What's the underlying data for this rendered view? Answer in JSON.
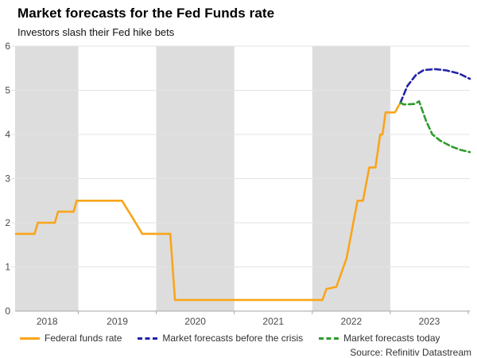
{
  "header": {
    "title": "Market forecasts for the Fed Funds rate",
    "subtitle": "Investors slash their Fed hike bets"
  },
  "source": "Source: Refinitiv Datastream",
  "chart_data": {
    "type": "line",
    "title": "Market forecasts for the Fed Funds rate",
    "subtitle": "Investors slash their Fed hike bets",
    "xlabel": "",
    "ylabel": "",
    "xlim": [
      2018.19,
      2024.02
    ],
    "ylim": [
      0,
      6
    ],
    "y_ticks": [
      0,
      1,
      2,
      3,
      4,
      5,
      6
    ],
    "x_boundaries": [
      2019,
      2020,
      2021,
      2022,
      2023,
      2024
    ],
    "x_labels": [
      {
        "label": "2018",
        "x": 2018.6
      },
      {
        "label": "2019",
        "x": 2019.5
      },
      {
        "label": "2020",
        "x": 2020.5
      },
      {
        "label": "2021",
        "x": 2021.5
      },
      {
        "label": "2022",
        "x": 2022.5
      },
      {
        "label": "2023",
        "x": 2023.5
      }
    ],
    "shaded_year_bands": [
      [
        2018.19,
        2019
      ],
      [
        2020,
        2021
      ],
      [
        2022,
        2023
      ]
    ],
    "grid": "horizontal",
    "legend_position": "bottom",
    "colors": {
      "band": "#dddddd",
      "grid": "#e3e3e3",
      "axis": "#a6a6a6",
      "tick_text": "#4a4a4a"
    },
    "series": [
      {
        "name": "Federal funds rate",
        "color": "#f9a51b",
        "dash": "",
        "points": [
          [
            2018.2,
            1.75
          ],
          [
            2018.44,
            1.75
          ],
          [
            2018.48,
            2.0
          ],
          [
            2018.7,
            2.0
          ],
          [
            2018.74,
            2.25
          ],
          [
            2018.94,
            2.25
          ],
          [
            2018.98,
            2.5
          ],
          [
            2019.56,
            2.5
          ],
          [
            2019.7,
            2.1
          ],
          [
            2019.82,
            1.75
          ],
          [
            2020.18,
            1.75
          ],
          [
            2020.24,
            0.25
          ],
          [
            2022.13,
            0.25
          ],
          [
            2022.18,
            0.5
          ],
          [
            2022.31,
            0.55
          ],
          [
            2022.44,
            1.2
          ],
          [
            2022.58,
            2.5
          ],
          [
            2022.65,
            2.5
          ],
          [
            2022.73,
            3.25
          ],
          [
            2022.81,
            3.25
          ],
          [
            2022.87,
            4.0
          ],
          [
            2022.9,
            4.0
          ],
          [
            2022.94,
            4.5
          ],
          [
            2023.06,
            4.5
          ],
          [
            2023.13,
            4.72
          ]
        ]
      },
      {
        "name": "Market forecasts before the crisis",
        "color": "#2323a7",
        "dash": "7 4",
        "points": [
          [
            2023.13,
            4.72
          ],
          [
            2023.22,
            5.1
          ],
          [
            2023.33,
            5.35
          ],
          [
            2023.43,
            5.46
          ],
          [
            2023.58,
            5.48
          ],
          [
            2023.72,
            5.45
          ],
          [
            2023.88,
            5.38
          ],
          [
            2024.02,
            5.26
          ]
        ]
      },
      {
        "name": "Market forecasts today",
        "color": "#2e9b2e",
        "dash": "7 4",
        "points": [
          [
            2023.13,
            4.72
          ],
          [
            2023.17,
            4.68
          ],
          [
            2023.31,
            4.69
          ],
          [
            2023.37,
            4.75
          ],
          [
            2023.46,
            4.3
          ],
          [
            2023.54,
            4.0
          ],
          [
            2023.64,
            3.86
          ],
          [
            2023.78,
            3.73
          ],
          [
            2023.9,
            3.65
          ],
          [
            2024.02,
            3.6
          ]
        ]
      }
    ]
  }
}
